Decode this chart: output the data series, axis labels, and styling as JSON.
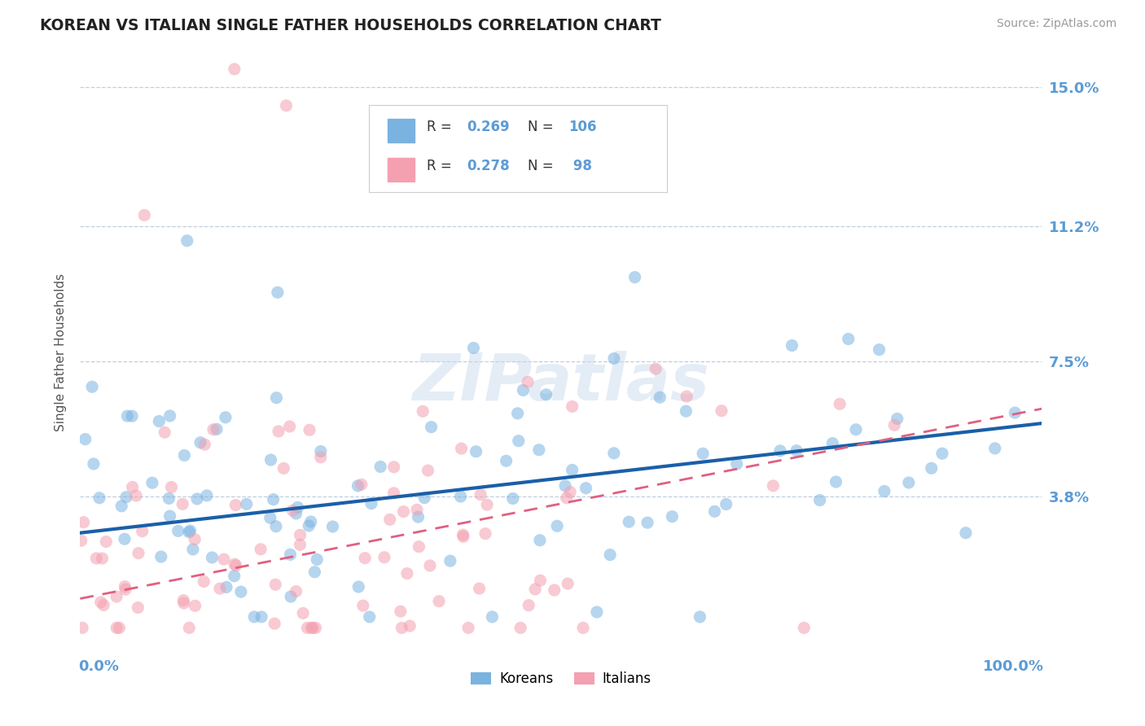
{
  "title": "KOREAN VS ITALIAN SINGLE FATHER HOUSEHOLDS CORRELATION CHART",
  "source": "Source: ZipAtlas.com",
  "ylabel": "Single Father Households",
  "ytick_vals": [
    0.038,
    0.075,
    0.112,
    0.15
  ],
  "ytick_labels": [
    "3.8%",
    "7.5%",
    "11.2%",
    "15.0%"
  ],
  "xlim": [
    0.0,
    1.0
  ],
  "ylim": [
    -0.005,
    0.16
  ],
  "korean_color": "#7ab3e0",
  "italian_color": "#f4a0b0",
  "korean_line_color": "#1a5fa8",
  "italian_line_color": "#e06080",
  "legend_korean_short": "Koreans",
  "legend_italian_short": "Italians",
  "watermark": "ZIPatlas",
  "background_color": "#ffffff",
  "grid_color": "#c0cfe0",
  "title_color": "#222222",
  "axis_label_color": "#5b9bd5",
  "korean_R": 0.269,
  "korean_N": 106,
  "italian_R": 0.278,
  "italian_N": 98,
  "korean_line_x0": 0.0,
  "korean_line_y0": 0.028,
  "korean_line_x1": 1.0,
  "korean_line_y1": 0.058,
  "italian_line_x0": 0.0,
  "italian_line_y0": 0.01,
  "italian_line_x1": 1.0,
  "italian_line_y1": 0.062
}
